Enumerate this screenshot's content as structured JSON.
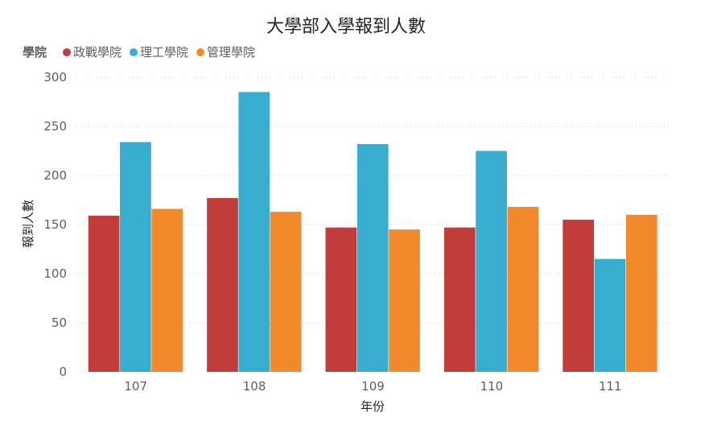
{
  "chart_data": {
    "type": "bar",
    "title": "大學部入學報到人數",
    "xlabel": "年份",
    "ylabel": "報到人數",
    "legend_title": "學院",
    "legend_position": "top-left",
    "categories": [
      "107",
      "108",
      "109",
      "110",
      "111"
    ],
    "ylim": [
      0,
      300
    ],
    "yticks": [
      0,
      50,
      100,
      150,
      200,
      250,
      300
    ],
    "grid": true,
    "series": [
      {
        "name": "政戰學院",
        "color": "#c23c39",
        "values": [
          159,
          177,
          147,
          147,
          155
        ]
      },
      {
        "name": "理工學院",
        "color": "#37aed0",
        "values": [
          234,
          285,
          232,
          225,
          115
        ]
      },
      {
        "name": "管理學院",
        "color": "#f28a2c",
        "values": [
          166,
          163,
          145,
          168,
          160
        ]
      }
    ]
  }
}
